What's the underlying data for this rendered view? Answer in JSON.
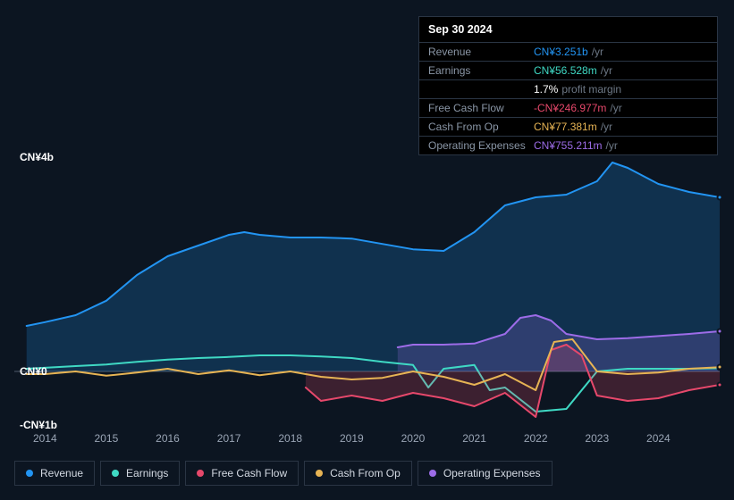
{
  "tooltip": {
    "date": "Sep 30 2024",
    "rows": [
      {
        "label": "Revenue",
        "value": "CN¥3.251b",
        "color": "#2294f2",
        "unit": "/yr"
      },
      {
        "label": "Earnings",
        "value": "CN¥56.528m",
        "color": "#3fd9c4",
        "unit": "/yr"
      },
      {
        "label": "",
        "value": "1.7%",
        "color": "#ffffff",
        "unit": "profit margin"
      },
      {
        "label": "Free Cash Flow",
        "value": "-CN¥246.977m",
        "color": "#e6486b",
        "unit": "/yr"
      },
      {
        "label": "Cash From Op",
        "value": "CN¥77.381m",
        "color": "#e7b454",
        "unit": "/yr"
      },
      {
        "label": "Operating Expenses",
        "value": "CN¥755.211m",
        "color": "#9d6ce8",
        "unit": "/yr"
      }
    ]
  },
  "chart": {
    "background": "#0c1521",
    "grid_color": "#8a96a6",
    "ylim": [
      -1,
      4
    ],
    "yticks": [
      {
        "v": 4,
        "label": "CN¥4b"
      },
      {
        "v": 0,
        "label": "CN¥0"
      },
      {
        "v": -1,
        "label": "-CN¥1b"
      }
    ],
    "xlim": [
      2013.5,
      2025
    ],
    "xticks": [
      2014,
      2015,
      2016,
      2017,
      2018,
      2019,
      2020,
      2021,
      2022,
      2023,
      2024
    ],
    "series": [
      {
        "name": "Revenue",
        "color": "#2294f2",
        "fill": true,
        "data": [
          [
            2013.7,
            0.85
          ],
          [
            2014.0,
            0.92
          ],
          [
            2014.5,
            1.05
          ],
          [
            2015.0,
            1.32
          ],
          [
            2015.5,
            1.8
          ],
          [
            2016.0,
            2.15
          ],
          [
            2016.5,
            2.35
          ],
          [
            2017.0,
            2.55
          ],
          [
            2017.25,
            2.6
          ],
          [
            2017.5,
            2.55
          ],
          [
            2018.0,
            2.5
          ],
          [
            2018.5,
            2.5
          ],
          [
            2019.0,
            2.48
          ],
          [
            2019.5,
            2.38
          ],
          [
            2020.0,
            2.28
          ],
          [
            2020.5,
            2.25
          ],
          [
            2021.0,
            2.6
          ],
          [
            2021.5,
            3.1
          ],
          [
            2022.0,
            3.25
          ],
          [
            2022.5,
            3.3
          ],
          [
            2023.0,
            3.55
          ],
          [
            2023.25,
            3.9
          ],
          [
            2023.5,
            3.8
          ],
          [
            2024.0,
            3.5
          ],
          [
            2024.5,
            3.35
          ],
          [
            2025.0,
            3.25
          ]
        ]
      },
      {
        "name": "Operating Expenses",
        "color": "#9d6ce8",
        "fill": true,
        "start": 2019.75,
        "data": [
          [
            2019.75,
            0.45
          ],
          [
            2020.0,
            0.5
          ],
          [
            2020.5,
            0.5
          ],
          [
            2021.0,
            0.52
          ],
          [
            2021.5,
            0.7
          ],
          [
            2021.75,
            1.0
          ],
          [
            2022.0,
            1.05
          ],
          [
            2022.25,
            0.95
          ],
          [
            2022.5,
            0.7
          ],
          [
            2023.0,
            0.6
          ],
          [
            2023.5,
            0.62
          ],
          [
            2024.0,
            0.66
          ],
          [
            2024.5,
            0.7
          ],
          [
            2025.0,
            0.75
          ]
        ]
      },
      {
        "name": "Earnings",
        "color": "#3fd9c4",
        "fill": false,
        "data": [
          [
            2013.7,
            0.05
          ],
          [
            2014.5,
            0.1
          ],
          [
            2015.0,
            0.13
          ],
          [
            2015.5,
            0.18
          ],
          [
            2016.0,
            0.22
          ],
          [
            2016.5,
            0.25
          ],
          [
            2017.0,
            0.27
          ],
          [
            2017.5,
            0.3
          ],
          [
            2018.0,
            0.3
          ],
          [
            2018.5,
            0.28
          ],
          [
            2019.0,
            0.25
          ],
          [
            2019.5,
            0.18
          ],
          [
            2020.0,
            0.12
          ],
          [
            2020.25,
            -0.3
          ],
          [
            2020.5,
            0.05
          ],
          [
            2021.0,
            0.12
          ],
          [
            2021.25,
            -0.35
          ],
          [
            2021.5,
            -0.3
          ],
          [
            2022.0,
            -0.75
          ],
          [
            2022.5,
            -0.7
          ],
          [
            2023.0,
            0.0
          ],
          [
            2023.5,
            0.05
          ],
          [
            2024.0,
            0.05
          ],
          [
            2024.5,
            0.05
          ],
          [
            2025.0,
            0.06
          ]
        ]
      },
      {
        "name": "Free Cash Flow",
        "color": "#e6486b",
        "fill": true,
        "start": 2018.25,
        "data": [
          [
            2018.25,
            -0.3
          ],
          [
            2018.5,
            -0.55
          ],
          [
            2019.0,
            -0.45
          ],
          [
            2019.5,
            -0.55
          ],
          [
            2020.0,
            -0.4
          ],
          [
            2020.5,
            -0.5
          ],
          [
            2021.0,
            -0.65
          ],
          [
            2021.5,
            -0.4
          ],
          [
            2022.0,
            -0.85
          ],
          [
            2022.25,
            0.4
          ],
          [
            2022.5,
            0.5
          ],
          [
            2022.75,
            0.3
          ],
          [
            2023.0,
            -0.45
          ],
          [
            2023.5,
            -0.55
          ],
          [
            2024.0,
            -0.5
          ],
          [
            2024.5,
            -0.35
          ],
          [
            2025.0,
            -0.25
          ]
        ]
      },
      {
        "name": "Cash From Op",
        "color": "#e7b454",
        "fill": false,
        "data": [
          [
            2013.7,
            -0.05
          ],
          [
            2014.0,
            -0.05
          ],
          [
            2014.5,
            0.0
          ],
          [
            2015.0,
            -0.08
          ],
          [
            2015.5,
            -0.02
          ],
          [
            2016.0,
            0.05
          ],
          [
            2016.5,
            -0.05
          ],
          [
            2017.0,
            0.02
          ],
          [
            2017.5,
            -0.07
          ],
          [
            2018.0,
            0.0
          ],
          [
            2018.5,
            -0.1
          ],
          [
            2019.0,
            -0.15
          ],
          [
            2019.5,
            -0.12
          ],
          [
            2020.0,
            0.0
          ],
          [
            2020.5,
            -0.1
          ],
          [
            2021.0,
            -0.25
          ],
          [
            2021.5,
            -0.05
          ],
          [
            2022.0,
            -0.35
          ],
          [
            2022.3,
            0.55
          ],
          [
            2022.6,
            0.6
          ],
          [
            2023.0,
            0.0
          ],
          [
            2023.5,
            -0.05
          ],
          [
            2024.0,
            -0.02
          ],
          [
            2024.5,
            0.05
          ],
          [
            2025.0,
            0.08
          ]
        ]
      }
    ]
  },
  "legend": [
    {
      "label": "Revenue",
      "color": "#2294f2"
    },
    {
      "label": "Earnings",
      "color": "#3fd9c4"
    },
    {
      "label": "Free Cash Flow",
      "color": "#e6486b"
    },
    {
      "label": "Cash From Op",
      "color": "#e7b454"
    },
    {
      "label": "Operating Expenses",
      "color": "#9d6ce8"
    }
  ]
}
